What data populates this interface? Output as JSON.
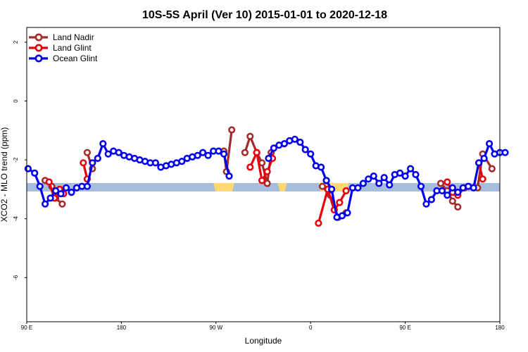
{
  "chart_data": {
    "type": "line",
    "title": "10S-5S April (Ver 10)   2015-01-01 to 2020-12-18",
    "xlabel": "Longitude",
    "ylabel": "XCO2 - MLO trend (ppm)",
    "xlim": [
      90,
      450
    ],
    "ylim": [
      -7.5,
      2.5
    ],
    "x_ticks": [
      {
        "value": 90,
        "label": "90 E"
      },
      {
        "value": 162,
        "label": "180"
      },
      {
        "value": 234,
        "label": "90 W"
      },
      {
        "value": 306,
        "label": "0"
      },
      {
        "value": 378,
        "label": "90 E"
      },
      {
        "value": 450,
        "label": "180"
      }
    ],
    "y_ticks": [
      {
        "value": 2,
        "label": "2"
      },
      {
        "value": 0,
        "label": "0"
      },
      {
        "value": -2,
        "label": "-2"
      },
      {
        "value": -4,
        "label": "-4"
      },
      {
        "value": -6,
        "label": "-6"
      }
    ],
    "legend_position": "top-left",
    "grid": false,
    "band": {
      "y": -2.93,
      "color": "#a6bddb",
      "highlight_color": "#fdd76f",
      "highlights": [
        [
          232,
          248
        ],
        [
          281,
          288
        ],
        [
          312,
          335
        ]
      ]
    },
    "series": [
      {
        "name": "Land Nadir",
        "color": "#a52a2a",
        "segments": [
          [
            [
              104,
              -2.7
            ],
            [
              109,
              -2.9
            ],
            [
              112,
              -3.3
            ],
            [
              117,
              -3.5
            ]
          ],
          [
            [
              136,
              -1.75
            ],
            [
              140,
              -2.3
            ]
          ],
          [
            [
              240,
              -1.7
            ],
            [
              242,
              -2.4
            ],
            [
              246,
              -0.98
            ]
          ],
          [
            [
              256,
              -1.75
            ],
            [
              260,
              -1.2
            ],
            [
              265,
              -1.75
            ],
            [
              269,
              -2.1
            ],
            [
              273,
              -2.8
            ],
            [
              276,
              -1.75
            ]
          ],
          [
            [
              315,
              -2.9
            ],
            [
              321,
              -3.2
            ],
            [
              327,
              -3.95
            ],
            [
              333,
              -3.8
            ]
          ],
          [
            [
              405,
              -2.8
            ],
            [
              410,
              -3.05
            ],
            [
              414,
              -3.4
            ],
            [
              418,
              -3.6
            ]
          ],
          [
            [
              433,
              -2.95
            ],
            [
              437,
              -1.8
            ],
            [
              444,
              -2.3
            ]
          ]
        ]
      },
      {
        "name": "Land Glint",
        "color": "#e8000b",
        "segments": [
          [
            [
              107,
              -2.75
            ],
            [
              111,
              -3.3
            ],
            [
              115,
              -3.0
            ],
            [
              118,
              -3.15
            ]
          ],
          [
            [
              133,
              -2.1
            ],
            [
              136,
              -2.65
            ]
          ],
          [
            [
              260,
              -2.25
            ],
            [
              265,
              -1.75
            ],
            [
              269,
              -2.7
            ],
            [
              273,
              -2.4
            ],
            [
              277,
              -1.95
            ]
          ],
          [
            [
              312,
              -4.15
            ],
            [
              319,
              -3.0
            ],
            [
              324,
              -3.7
            ],
            [
              328,
              -3.45
            ],
            [
              333,
              -3.05
            ]
          ],
          [
            [
              410,
              -2.75
            ],
            [
              414,
              -3.1
            ],
            [
              418,
              -3.2
            ],
            [
              423,
              -2.95
            ]
          ],
          [
            [
              434,
              -2.1
            ],
            [
              437,
              -2.65
            ]
          ]
        ]
      },
      {
        "name": "Ocean Glint",
        "color": "#0000ee",
        "segments": [
          [
            [
              91,
              -2.3
            ],
            [
              96,
              -2.45
            ],
            [
              100,
              -2.9
            ],
            [
              104,
              -3.5
            ],
            [
              108,
              -3.3
            ],
            [
              112,
              -3.05
            ],
            [
              116,
              -3.15
            ],
            [
              120,
              -2.95
            ],
            [
              124,
              -3.1
            ],
            [
              128,
              -2.95
            ],
            [
              132,
              -2.9
            ],
            [
              136,
              -2.9
            ],
            [
              140,
              -2.1
            ],
            [
              144,
              -1.95
            ],
            [
              148,
              -1.45
            ],
            [
              152,
              -1.8
            ],
            [
              156,
              -1.7
            ],
            [
              160,
              -1.75
            ],
            [
              164,
              -1.85
            ],
            [
              168,
              -1.9
            ],
            [
              172,
              -1.95
            ],
            [
              176,
              -2.0
            ],
            [
              180,
              -2.05
            ],
            [
              184,
              -2.1
            ],
            [
              188,
              -2.1
            ],
            [
              192,
              -2.25
            ],
            [
              196,
              -2.2
            ],
            [
              200,
              -2.15
            ],
            [
              204,
              -2.1
            ],
            [
              208,
              -2.05
            ],
            [
              212,
              -1.95
            ],
            [
              216,
              -1.9
            ],
            [
              220,
              -1.85
            ],
            [
              224,
              -1.75
            ],
            [
              228,
              -1.85
            ],
            [
              232,
              -1.7
            ],
            [
              236,
              -1.7
            ],
            [
              240,
              -1.8
            ],
            [
              244,
              -2.55
            ]
          ],
          [
            [
              274,
              -1.95
            ],
            [
              278,
              -1.6
            ],
            [
              282,
              -1.5
            ],
            [
              286,
              -1.45
            ],
            [
              290,
              -1.35
            ],
            [
              294,
              -1.3
            ],
            [
              298,
              -1.4
            ],
            [
              302,
              -1.65
            ],
            [
              306,
              -1.8
            ],
            [
              310,
              -2.2
            ],
            [
              314,
              -2.25
            ],
            [
              318,
              -2.7
            ],
            [
              322,
              -3.0
            ],
            [
              326,
              -3.95
            ],
            [
              330,
              -3.9
            ],
            [
              334,
              -3.8
            ],
            [
              338,
              -2.95
            ],
            [
              342,
              -2.95
            ],
            [
              346,
              -2.8
            ],
            [
              350,
              -2.65
            ],
            [
              354,
              -2.55
            ],
            [
              358,
              -2.8
            ],
            [
              362,
              -2.6
            ],
            [
              366,
              -2.85
            ],
            [
              370,
              -2.5
            ],
            [
              374,
              -2.45
            ],
            [
              378,
              -2.55
            ],
            [
              382,
              -2.3
            ],
            [
              386,
              -2.5
            ],
            [
              390,
              -2.9
            ],
            [
              394,
              -3.5
            ],
            [
              398,
              -3.35
            ],
            [
              402,
              -3.05
            ],
            [
              406,
              -3.05
            ],
            [
              410,
              -3.2
            ],
            [
              414,
              -2.95
            ],
            [
              418,
              -3.1
            ],
            [
              422,
              -2.95
            ],
            [
              426,
              -2.9
            ],
            [
              430,
              -2.95
            ],
            [
              434,
              -2.1
            ],
            [
              438,
              -1.95
            ],
            [
              442,
              -1.45
            ],
            [
              446,
              -1.8
            ],
            [
              450,
              -1.75
            ],
            [
              454,
              -1.75
            ]
          ]
        ]
      }
    ]
  }
}
